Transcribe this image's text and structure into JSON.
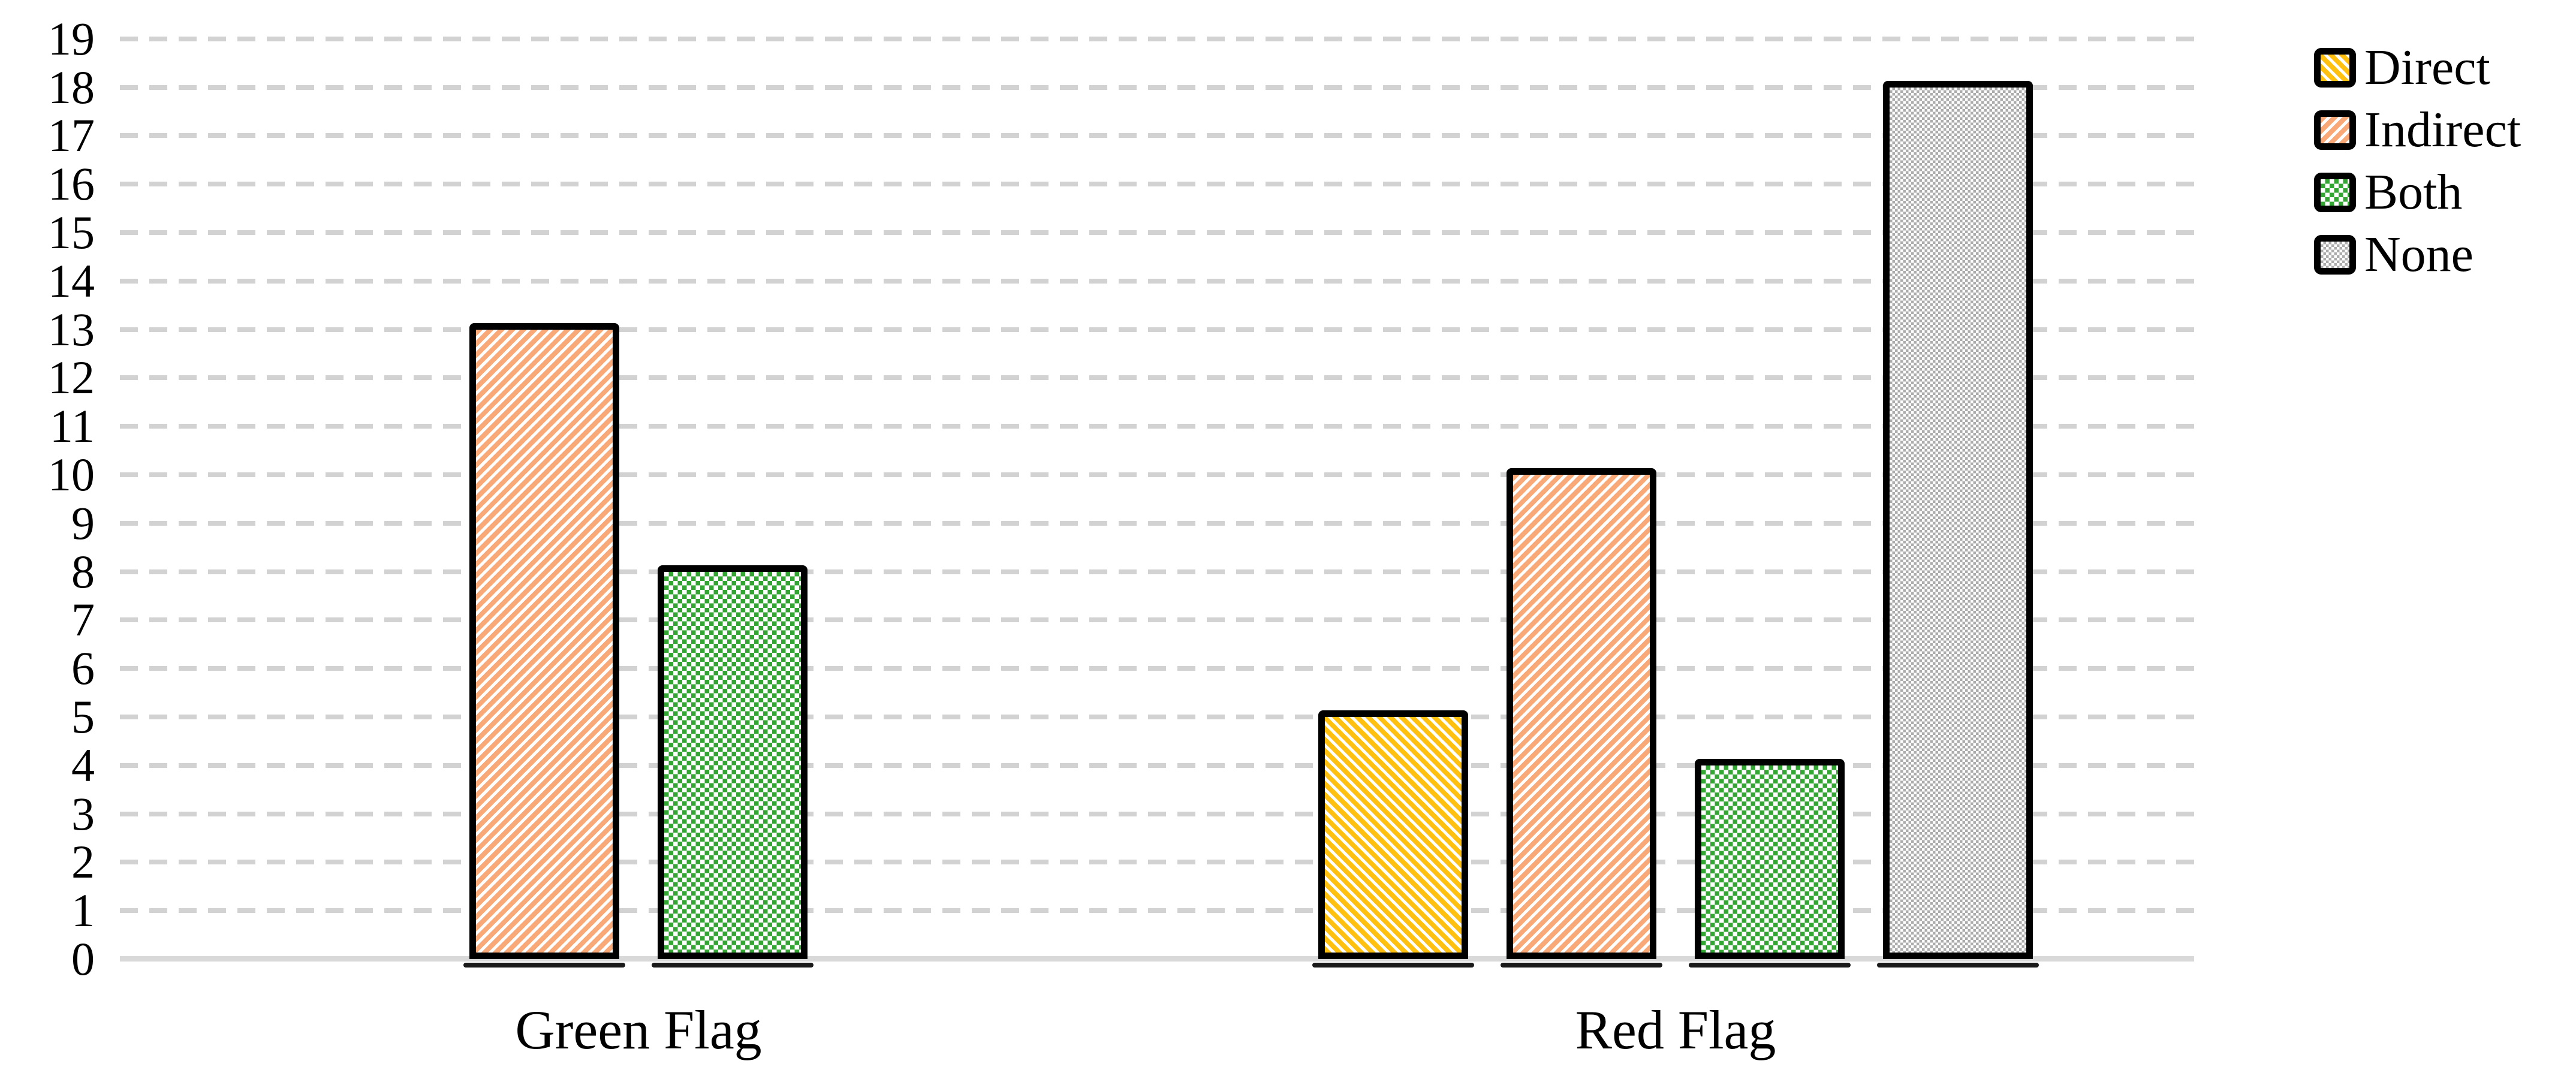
{
  "chart_data": {
    "type": "bar",
    "title": "",
    "xlabel": "",
    "ylabel": "",
    "categories": [
      "Green Flag",
      "Red Flag"
    ],
    "series": [
      {
        "name": "Direct",
        "pattern": "direct",
        "pattern_desc": "yellow diagonal stripes (down-right)",
        "values": [
          0,
          5
        ]
      },
      {
        "name": "Indirect",
        "pattern": "indirect",
        "pattern_desc": "peach diagonal stripes (up-right)",
        "values": [
          13,
          10
        ]
      },
      {
        "name": "Both",
        "pattern": "both",
        "pattern_desc": "green checkerboard",
        "values": [
          8,
          4
        ]
      },
      {
        "name": "None",
        "pattern": "none",
        "pattern_desc": "gray fine checkerboard",
        "values": [
          0,
          18
        ]
      }
    ],
    "ylim": [
      0,
      19
    ],
    "yticks": [
      0,
      1,
      2,
      3,
      4,
      5,
      6,
      7,
      8,
      9,
      10,
      11,
      12,
      13,
      14,
      15,
      16,
      17,
      18,
      19
    ],
    "grid": "dashed-horizontal",
    "legend_position": "top-right"
  },
  "colors": {
    "series": {
      "direct": "#FFC010",
      "indirect": "#F9A878",
      "both": "#33A532",
      "none": "#ACACAC"
    },
    "grid": "#D2D2D2",
    "axis_line": "#D9D9D9",
    "bar_border": "#000000"
  }
}
